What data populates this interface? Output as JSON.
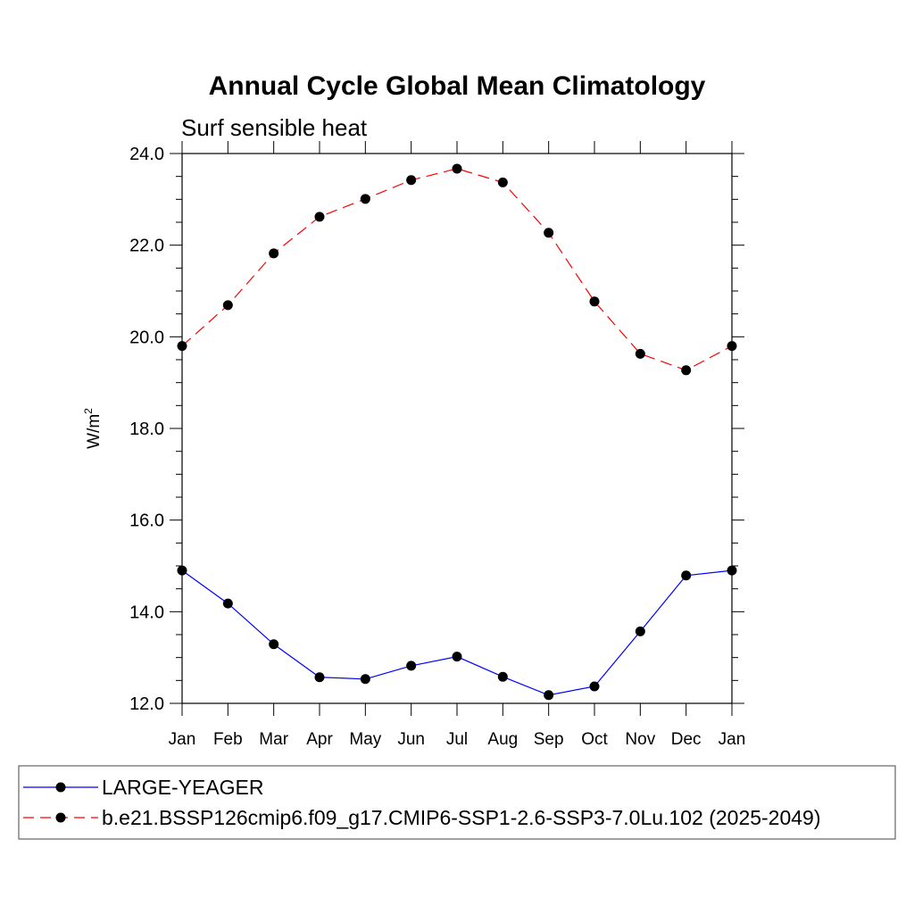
{
  "chart_data": {
    "type": "line",
    "title": "Annual Cycle Global Mean Climatology",
    "subtitle": "Surf sensible heat",
    "ylabel": "W/m",
    "ylabel_superscript": "2",
    "xlabel": "",
    "categories": [
      "Jan",
      "Feb",
      "Mar",
      "Apr",
      "May",
      "Jun",
      "Jul",
      "Aug",
      "Sep",
      "Oct",
      "Nov",
      "Dec",
      "Jan"
    ],
    "ylim": [
      12.0,
      24.0
    ],
    "yticks": [
      "12.0",
      "14.0",
      "16.0",
      "18.0",
      "20.0",
      "22.0",
      "24.0"
    ],
    "grid": false,
    "legend_position": "bottom",
    "series": [
      {
        "name": "LARGE-YEAGER",
        "color": "#0000ff",
        "line_style": "solid",
        "marker": "filled-circle",
        "values": [
          14.9,
          14.18,
          13.29,
          12.57,
          12.53,
          12.82,
          13.02,
          12.58,
          12.18,
          12.37,
          13.57,
          14.79,
          14.9
        ]
      },
      {
        "name": "b.e21.BSSP126cmip6.f09_g17.CMIP6-SSP1-2.6-SSP3-7.0Lu.102 (2025-2049)",
        "color": "#ff0000",
        "line_style": "dashed",
        "marker": "filled-circle",
        "values": [
          19.8,
          20.69,
          21.82,
          22.62,
          23.01,
          23.42,
          23.67,
          23.37,
          22.27,
          20.77,
          19.63,
          19.27,
          19.8
        ]
      }
    ]
  }
}
